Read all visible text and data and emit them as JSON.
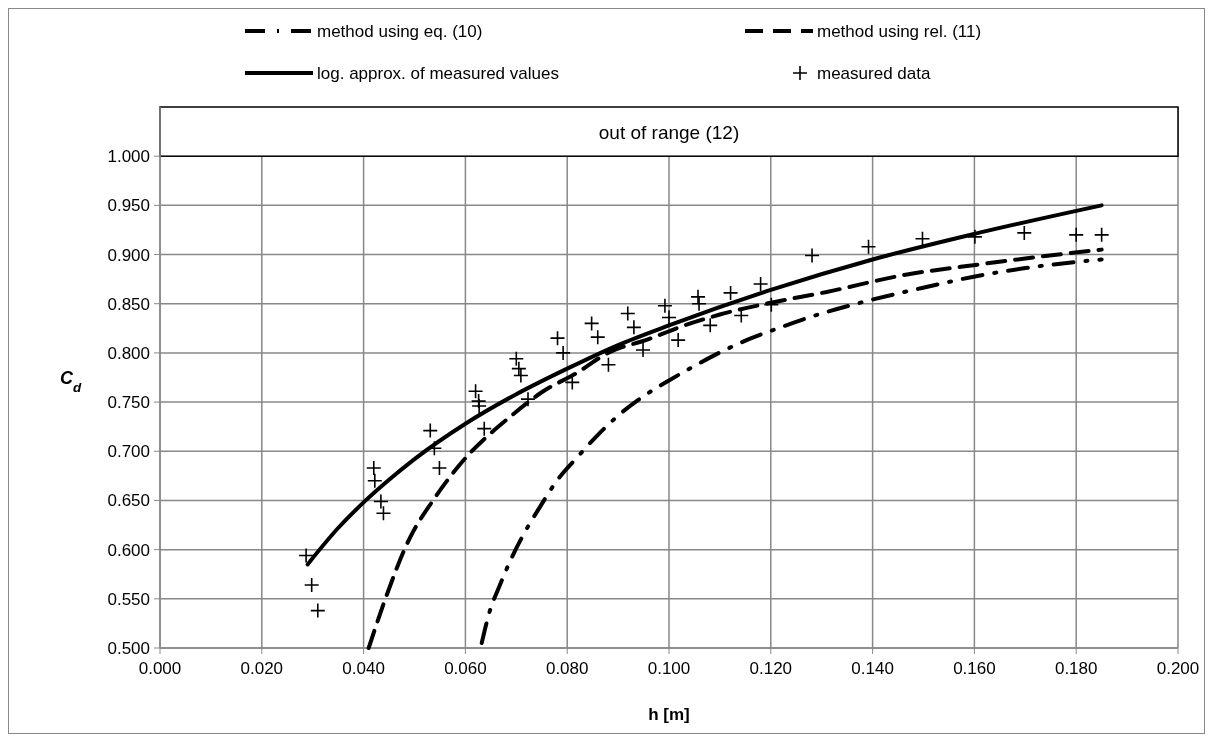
{
  "chart_data": {
    "type": "line",
    "xlabel": "h [m]",
    "ylabel": "C$_{d}$",
    "xlim": [
      0,
      0.2
    ],
    "ylim": [
      0.5,
      1.05
    ],
    "xticks": [
      {
        "value": 0,
        "label": "0.000"
      },
      {
        "value": 0.02,
        "label": "0.020"
      },
      {
        "value": 0.04,
        "label": "0.040"
      },
      {
        "value": 0.06,
        "label": "0.060"
      },
      {
        "value": 0.08,
        "label": "0.080"
      },
      {
        "value": 0.1,
        "label": "0.100"
      },
      {
        "value": 0.12,
        "label": "0.120"
      },
      {
        "value": 0.14,
        "label": "0.140"
      },
      {
        "value": 0.16,
        "label": "0.160"
      },
      {
        "value": 0.18,
        "label": "0.180"
      },
      {
        "value": 0.2,
        "label": "0.200"
      }
    ],
    "yticks": [
      {
        "value": 0.5,
        "label": "0.500"
      },
      {
        "value": 0.55,
        "label": "0.550"
      },
      {
        "value": 0.6,
        "label": "0.600"
      },
      {
        "value": 0.65,
        "label": "0.650"
      },
      {
        "value": 0.7,
        "label": "0.700"
      },
      {
        "value": 0.75,
        "label": "0.750"
      },
      {
        "value": 0.8,
        "label": "0.800"
      },
      {
        "value": 0.85,
        "label": "0.850"
      },
      {
        "value": 0.9,
        "label": "0.900"
      },
      {
        "value": 0.95,
        "label": "0.950"
      },
      {
        "value": 1.0,
        "label": "1.000"
      }
    ],
    "grid": true,
    "legend": "top",
    "bands": [
      {
        "axis": "y",
        "from": 1.0,
        "to": 1.05,
        "label": "out of range (12)",
        "color": "#ffffff"
      }
    ],
    "series": [
      {
        "name": "method using eq. (10)",
        "line_style": "dashdot",
        "color": "#000000",
        "x": [
          0.0632,
          0.0647,
          0.0667,
          0.0693,
          0.0716,
          0.0746,
          0.0781,
          0.0818,
          0.0859,
          0.0904,
          0.095,
          0.1,
          0.1051,
          0.1102,
          0.1157,
          0.1214,
          0.1269,
          0.1383,
          0.1497,
          0.1614,
          0.1697,
          0.185
        ],
        "values": [
          0.505,
          0.536,
          0.563,
          0.594,
          0.617,
          0.643,
          0.671,
          0.693,
          0.716,
          0.738,
          0.756,
          0.772,
          0.787,
          0.801,
          0.814,
          0.825,
          0.835,
          0.852,
          0.866,
          0.879,
          0.886,
          0.895
        ]
      },
      {
        "name": "method using rel. (11)",
        "line_style": "dashed",
        "color": "#000000",
        "x": [
          0.041,
          0.044,
          0.049,
          0.0535,
          0.059,
          0.069,
          0.075,
          0.082,
          0.088,
          0.096,
          0.102,
          0.11,
          0.12,
          0.131,
          0.146,
          0.161,
          0.17,
          0.185
        ],
        "values": [
          0.5,
          0.546,
          0.611,
          0.649,
          0.687,
          0.736,
          0.76,
          0.78,
          0.8,
          0.814,
          0.826,
          0.839,
          0.851,
          0.862,
          0.879,
          0.89,
          0.896,
          0.905
        ]
      },
      {
        "name": "log. approx. of measured values",
        "line_style": "solid",
        "color": "#000000",
        "x": [
          0.029,
          0.035,
          0.04,
          0.045,
          0.05,
          0.06,
          0.07,
          0.08,
          0.09,
          0.1,
          0.12,
          0.14,
          0.16,
          0.185
        ],
        "values": [
          0.585,
          0.622,
          0.648,
          0.671,
          0.692,
          0.728,
          0.758,
          0.784,
          0.808,
          0.828,
          0.864,
          0.895,
          0.921,
          0.95
        ]
      },
      {
        "name": "measured data",
        "type": "scatter",
        "marker": "cross",
        "color": "#000000",
        "x": [
          0.0287,
          0.0298,
          0.031,
          0.042,
          0.0422,
          0.0434,
          0.0439,
          0.0531,
          0.0539,
          0.0549,
          0.062,
          0.0626,
          0.0627,
          0.0637,
          0.07,
          0.0705,
          0.0709,
          0.0723,
          0.0781,
          0.0792,
          0.081,
          0.0848,
          0.086,
          0.0881,
          0.0919,
          0.0931,
          0.0949,
          0.0992,
          0.1,
          0.1018,
          0.1057,
          0.1059,
          0.1081,
          0.1121,
          0.1142,
          0.118,
          0.1201,
          0.1281,
          0.1392,
          0.1498,
          0.1601,
          0.1698,
          0.18,
          0.185
        ],
        "values": [
          0.594,
          0.564,
          0.538,
          0.683,
          0.67,
          0.649,
          0.637,
          0.721,
          0.703,
          0.683,
          0.761,
          0.751,
          0.746,
          0.723,
          0.794,
          0.784,
          0.777,
          0.753,
          0.815,
          0.8,
          0.77,
          0.83,
          0.816,
          0.788,
          0.84,
          0.826,
          0.803,
          0.848,
          0.836,
          0.813,
          0.857,
          0.85,
          0.828,
          0.861,
          0.838,
          0.87,
          0.849,
          0.899,
          0.908,
          0.916,
          0.918,
          0.922,
          0.92,
          0.92
        ]
      }
    ]
  }
}
